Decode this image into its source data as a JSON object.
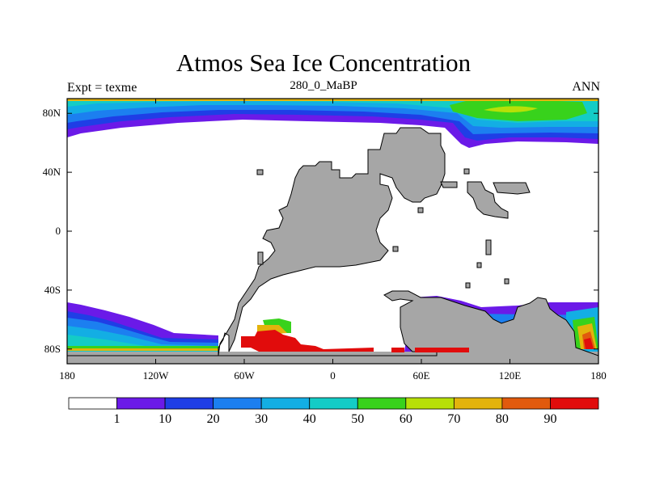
{
  "title": "Atmos Sea Ice Concentration",
  "subtitle_left": "Expt = texme",
  "subtitle_center": "280_0_MaBP",
  "subtitle_right": "ANN",
  "xaxis": {
    "ticks": [
      "180",
      "120W",
      "60W",
      "0",
      "60E",
      "120E",
      "180"
    ],
    "values": [
      -180,
      -120,
      -60,
      0,
      60,
      120,
      180
    ],
    "range": [
      -180,
      180
    ]
  },
  "yaxis": {
    "ticks": [
      "80N",
      "40N",
      "0",
      "40S",
      "80S"
    ],
    "values": [
      80,
      40,
      0,
      -40,
      -80
    ],
    "range": [
      -90,
      90
    ]
  },
  "colorbar": {
    "levels": [
      "1",
      "10",
      "20",
      "30",
      "40",
      "50",
      "60",
      "70",
      "80",
      "90"
    ],
    "colors": [
      "#ffffff",
      "#6b1ae8",
      "#1f3ee6",
      "#1c7ff0",
      "#13aee4",
      "#14ccc6",
      "#38d21c",
      "#b7e007",
      "#e3b30c",
      "#e15a0d",
      "#e10c0c"
    ]
  },
  "colors": {
    "land": "#a6a6a6",
    "coast": "#000000"
  }
}
